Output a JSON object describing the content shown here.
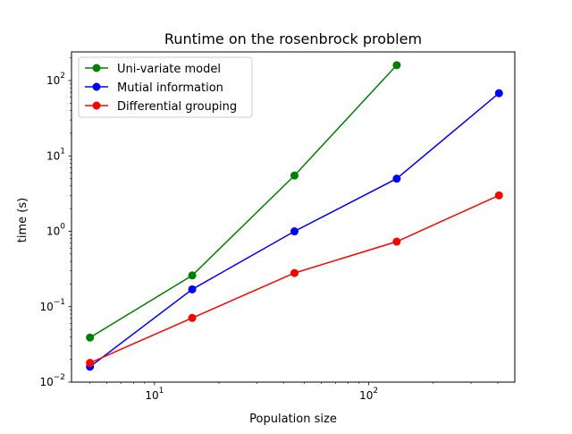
{
  "chart_data": {
    "type": "line",
    "title": "Runtime on the rosenbrock problem",
    "xlabel": "Population size",
    "ylabel": "time (s)",
    "xscale": "log",
    "yscale": "log",
    "xlim": [
      4.1,
      480
    ],
    "ylim": [
      0.01,
      240
    ],
    "x_ticks": [
      {
        "value": 10,
        "base": "10",
        "exp": "1"
      },
      {
        "value": 100,
        "base": "10",
        "exp": "2"
      }
    ],
    "y_ticks": [
      {
        "value": 0.01,
        "base": "10",
        "exp": "−2"
      },
      {
        "value": 0.1,
        "base": "10",
        "exp": "−1"
      },
      {
        "value": 1,
        "base": "10",
        "exp": "0"
      },
      {
        "value": 10,
        "base": "10",
        "exp": "1"
      },
      {
        "value": 100,
        "base": "10",
        "exp": "2"
      }
    ],
    "grid": false,
    "legend_position": "upper left",
    "series": [
      {
        "name": "Uni-variate model",
        "color": "#008000",
        "x": [
          5,
          15,
          45,
          135
        ],
        "y": [
          0.039,
          0.26,
          5.5,
          160
        ]
      },
      {
        "name": "Mutial information",
        "color": "#0000ff",
        "x": [
          5,
          15,
          45,
          135,
          405
        ],
        "y": [
          0.016,
          0.17,
          1.0,
          5.0,
          68
        ]
      },
      {
        "name": "Differential grouping",
        "color": "#ff0000",
        "x": [
          5,
          15,
          45,
          135,
          405
        ],
        "y": [
          0.018,
          0.071,
          0.28,
          0.73,
          3.0
        ]
      }
    ]
  }
}
